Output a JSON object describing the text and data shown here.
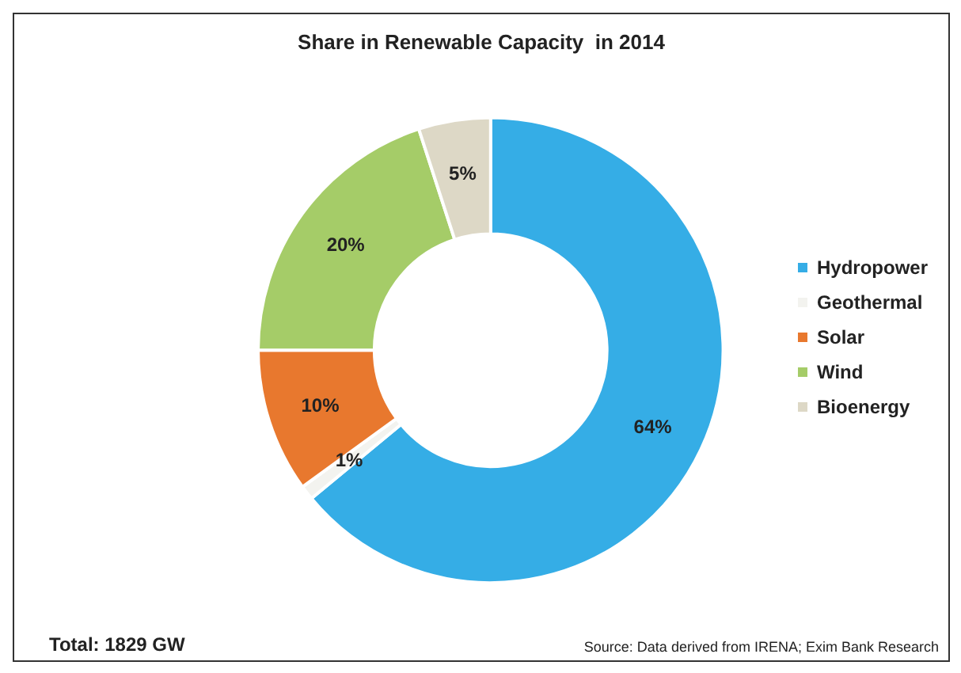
{
  "chart_data": {
    "type": "donut",
    "title": "Share in Renewable Capacity  in 2014",
    "categories": [
      "Hydropower",
      "Geothermal",
      "Solar",
      "Wind",
      "Bioenergy"
    ],
    "values": [
      64,
      1,
      10,
      20,
      5
    ],
    "colors": [
      "#35ade6",
      "#f3f3ef",
      "#e8782e",
      "#a5cc68",
      "#ddd8c6"
    ],
    "value_labels": [
      "64%",
      "1%",
      "10%",
      "20%",
      "5%"
    ],
    "legend": "right",
    "annotations": [
      "Total: 1829 GW",
      "Source: Data derived from IRENA; Exim Bank Research"
    ]
  }
}
